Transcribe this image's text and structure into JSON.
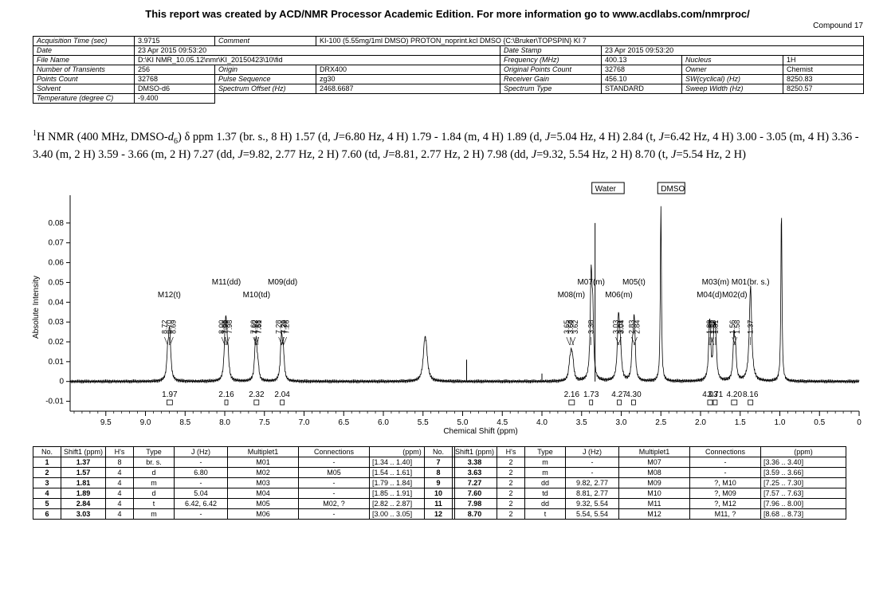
{
  "report_title": "This report was created by ACD/NMR Processor Academic Edition. For more information go to www.acdlabs.com/nmrproc/",
  "compound": "Compound 17",
  "acquisition": {
    "rows": [
      [
        {
          "t": "Acquisition Time (sec)",
          "l": true
        },
        {
          "t": "3.9715"
        },
        {
          "t": "Comment",
          "l": true
        },
        {
          "t": "KI-100 (5.55mg/1ml DMSO) PROTON_noprint.kcl DMSO {C:\\Bruker\\TOPSPIN} KI 7",
          "span": 5
        }
      ],
      [
        {
          "t": "Date",
          "l": true
        },
        {
          "t": "23 Apr 2015 09:53:20",
          "span": 3
        },
        {
          "t": "Date Stamp",
          "l": true
        },
        {
          "t": "23 Apr 2015 09:53:20",
          "span": 3
        }
      ],
      [
        {
          "t": "File Name",
          "l": true
        },
        {
          "t": "D:\\KI NMR_10.05.12\\nmr\\KI_20150423\\10\\fid",
          "span": 3
        },
        {
          "t": "Frequency (MHz)",
          "l": true
        },
        {
          "t": "400.13"
        },
        {
          "t": "Nucleus",
          "l": true
        },
        {
          "t": "1H"
        }
      ],
      [
        {
          "t": "Number of Transients",
          "l": true
        },
        {
          "t": "256"
        },
        {
          "t": "Origin",
          "l": true
        },
        {
          "t": "DRX400"
        },
        {
          "t": "Original Points Count",
          "l": true
        },
        {
          "t": "32768"
        },
        {
          "t": "Owner",
          "l": true
        },
        {
          "t": "Chemist"
        }
      ],
      [
        {
          "t": "Points Count",
          "l": true
        },
        {
          "t": "32768"
        },
        {
          "t": "Pulse Sequence",
          "l": true
        },
        {
          "t": "zg30"
        },
        {
          "t": "Receiver Gain",
          "l": true
        },
        {
          "t": "456.10"
        },
        {
          "t": "SW(cyclical) (Hz)",
          "l": true
        },
        {
          "t": "8250.83"
        }
      ],
      [
        {
          "t": "Solvent",
          "l": true
        },
        {
          "t": "DMSO-d6"
        },
        {
          "t": "Spectrum Offset (Hz)",
          "l": true
        },
        {
          "t": "2468.6687"
        },
        {
          "t": "Spectrum Type",
          "l": true
        },
        {
          "t": "STANDARD"
        },
        {
          "t": "Sweep Width (Hz)",
          "l": true
        },
        {
          "t": "8250.57"
        }
      ],
      [
        {
          "t": "Temperature (degree C)",
          "l": true
        },
        {
          "t": "-9.400"
        }
      ]
    ]
  },
  "nmr_text": {
    "nucleus_mass": "1",
    "start": "H NMR (400 MHz, DMSO-",
    "d_letter": "d",
    "d_sub": "6",
    "after_solvent": ") δ ppm 1.37 (br. s., 8 H) 1.57 (d, ",
    "segments": [
      {
        "j": "J",
        "t": "=6.80 Hz, 4 H) 1.79 - 1.84 (m, 4 H) 1.89 (d, "
      },
      {
        "j": "J",
        "t": "=5.04 Hz, 4 H) 2.84 (t, "
      },
      {
        "j": "J",
        "t": "=6.42 Hz, 4 H) 3.00 - 3.05 (m, 4 H) 3.36 - 3.40 (m, 2 H) 3.59 - 3.66 (m, 2 H) 7.27 (dd, "
      },
      {
        "j": "J",
        "t": "=9.82, 2.77 Hz, 2 H) 7.60 (td, "
      },
      {
        "j": "J",
        "t": "=8.81, 2.77 Hz, 2 H) 7.98 (dd, "
      },
      {
        "j": "J",
        "t": "=9.32, 5.54 Hz, 2 H) 8.70 (t, "
      },
      {
        "j": "J",
        "t": "=5.54 Hz, 2 H)"
      }
    ]
  },
  "chart_data": {
    "type": "line",
    "xlabel": "Chemical Shift (ppm)",
    "ylabel": "Absolute Intensity",
    "xlim": [
      9.95,
      0.0
    ],
    "ylim": [
      -0.015,
      0.09
    ],
    "x_reversed": true,
    "xticks": [
      9.5,
      9.0,
      8.5,
      8.0,
      7.5,
      7.0,
      6.5,
      6.0,
      5.5,
      5.0,
      4.5,
      4.0,
      3.5,
      3.0,
      2.5,
      2.0,
      1.5,
      1.0,
      0.5,
      0
    ],
    "xtick_labels": [
      "9.5",
      "9.0",
      "8.5",
      "8.0",
      "7.5",
      "7.0",
      "6.5",
      "6.0",
      "5.5",
      "5.0",
      "4.5",
      "4.0",
      "3.5",
      "3.0",
      "2.5",
      "2.0",
      "1.5",
      "1.0",
      "0.5",
      "0"
    ],
    "yticks": [
      -0.01,
      0,
      0.01,
      0.02,
      0.03,
      0.04,
      0.05,
      0.06,
      0.07,
      0.08
    ],
    "ytick_labels": [
      "-0.01",
      "0",
      "0.01",
      "0.02",
      "0.03",
      "0.04",
      "0.05",
      "0.06",
      "0.07",
      "0.08"
    ],
    "peaks": [
      {
        "ppm": 8.72,
        "h": 0.012,
        "w": 0.014
      },
      {
        "ppm": 8.7,
        "h": 0.016,
        "w": 0.014
      },
      {
        "ppm": 8.69,
        "h": 0.012,
        "w": 0.014
      },
      {
        "ppm": 8.0,
        "h": 0.01,
        "w": 0.013
      },
      {
        "ppm": 7.99,
        "h": 0.014,
        "w": 0.013
      },
      {
        "ppm": 7.98,
        "h": 0.016,
        "w": 0.013
      },
      {
        "ppm": 7.96,
        "h": 0.012,
        "w": 0.013
      },
      {
        "ppm": 7.62,
        "h": 0.006,
        "w": 0.013
      },
      {
        "ppm": 7.61,
        "h": 0.01,
        "w": 0.013
      },
      {
        "ppm": 7.6,
        "h": 0.011,
        "w": 0.013
      },
      {
        "ppm": 7.58,
        "h": 0.006,
        "w": 0.013
      },
      {
        "ppm": 7.29,
        "h": 0.012,
        "w": 0.013
      },
      {
        "ppm": 7.28,
        "h": 0.013,
        "w": 0.013
      },
      {
        "ppm": 7.26,
        "h": 0.012,
        "w": 0.013
      },
      {
        "ppm": 5.48,
        "h": 0.015,
        "w": 0.022
      },
      {
        "ppm": 5.46,
        "h": 0.012,
        "w": 0.022
      },
      {
        "ppm": 3.65,
        "h": 0.007,
        "w": 0.015
      },
      {
        "ppm": 3.63,
        "h": 0.011,
        "w": 0.015
      },
      {
        "ppm": 3.61,
        "h": 0.008,
        "w": 0.015
      },
      {
        "ppm": 3.38,
        "h": 0.05,
        "w": 0.013
      },
      {
        "ppm": 3.36,
        "h": 0.03,
        "w": 0.013
      },
      {
        "ppm": 3.04,
        "h": 0.015,
        "w": 0.015
      },
      {
        "ppm": 3.03,
        "h": 0.019,
        "w": 0.015
      },
      {
        "ppm": 3.01,
        "h": 0.013,
        "w": 0.015
      },
      {
        "ppm": 2.86,
        "h": 0.014,
        "w": 0.012
      },
      {
        "ppm": 2.84,
        "h": 0.021,
        "w": 0.012
      },
      {
        "ppm": 2.83,
        "h": 0.014,
        "w": 0.012
      },
      {
        "ppm": 2.5,
        "h": 0.088,
        "w": 0.008
      },
      {
        "ppm": 1.89,
        "h": 0.016,
        "w": 0.013
      },
      {
        "ppm": 1.88,
        "h": 0.018,
        "w": 0.013
      },
      {
        "ppm": 1.83,
        "h": 0.021,
        "w": 0.013
      },
      {
        "ppm": 1.81,
        "h": 0.022,
        "w": 0.013
      },
      {
        "ppm": 1.58,
        "h": 0.02,
        "w": 0.013
      },
      {
        "ppm": 1.56,
        "h": 0.015,
        "w": 0.013
      },
      {
        "ppm": 1.37,
        "h": 0.048,
        "w": 0.018
      },
      {
        "ppm": 0.98,
        "h": 0.086,
        "w": 0.008
      }
    ],
    "spikes": [
      {
        "ppm": 4.95,
        "h": 0.011
      },
      {
        "ppm": 4.0,
        "h": 0.004
      },
      {
        "ppm": 3.33,
        "h": 0.08
      }
    ],
    "peak_labels": [
      {
        "ppm": 8.72,
        "text": "8.72"
      },
      {
        "ppm": 8.7,
        "text": "8.70"
      },
      {
        "ppm": 8.69,
        "text": "8.69"
      },
      {
        "ppm": 8.0,
        "text": "8.00"
      },
      {
        "ppm": 7.99,
        "text": "7.99"
      },
      {
        "ppm": 7.98,
        "text": "7.98"
      },
      {
        "ppm": 7.96,
        "text": "7.96"
      },
      {
        "ppm": 7.62,
        "text": "7.62"
      },
      {
        "ppm": 7.61,
        "text": "7.61"
      },
      {
        "ppm": 7.6,
        "text": "7.60"
      },
      {
        "ppm": 7.58,
        "text": "7.58"
      },
      {
        "ppm": 7.29,
        "text": "7.29"
      },
      {
        "ppm": 7.28,
        "text": "7.28"
      },
      {
        "ppm": 7.26,
        "text": "7.26"
      },
      {
        "ppm": 7.26,
        "text": "7.26"
      },
      {
        "ppm": 3.65,
        "text": "3.65"
      },
      {
        "ppm": 3.64,
        "text": "3.64"
      },
      {
        "ppm": 3.62,
        "text": "3.62"
      },
      {
        "ppm": 3.6,
        "text": "3.60"
      },
      {
        "ppm": 3.38,
        "text": "3.38"
      },
      {
        "ppm": 3.04,
        "text": "3.04"
      },
      {
        "ppm": 3.03,
        "text": "3.03"
      },
      {
        "ppm": 3.01,
        "text": "3.01"
      },
      {
        "ppm": 2.84,
        "text": "2.84"
      },
      {
        "ppm": 2.83,
        "text": "2.83"
      },
      {
        "ppm": 1.89,
        "text": "1.89"
      },
      {
        "ppm": 1.88,
        "text": "1.88"
      },
      {
        "ppm": 1.83,
        "text": "1.83"
      },
      {
        "ppm": 1.81,
        "text": "1.81"
      },
      {
        "ppm": 1.58,
        "text": "1.58"
      },
      {
        "ppm": 1.56,
        "text": "1.56"
      },
      {
        "ppm": 1.37,
        "text": "1.37"
      }
    ],
    "multiplet_labels": [
      {
        "ppm": 8.7,
        "text": "M12(t)"
      },
      {
        "ppm": 7.98,
        "text": "M11(dd)"
      },
      {
        "ppm": 7.6,
        "text": "M10(td)"
      },
      {
        "ppm": 7.27,
        "text": "M09(dd)"
      },
      {
        "ppm": 3.63,
        "text": "M08(m)"
      },
      {
        "ppm": 3.38,
        "text": "M07(m)"
      },
      {
        "ppm": 3.03,
        "text": "M06(m)"
      },
      {
        "ppm": 2.84,
        "text": "M05(t)"
      },
      {
        "ppm": 1.89,
        "text": "M04(d)"
      },
      {
        "ppm": 1.81,
        "text": "M03(m)"
      },
      {
        "ppm": 1.57,
        "text": "M02(d)"
      },
      {
        "ppm": 1.37,
        "text": "M01(br. s.)"
      }
    ],
    "solvent_labels": [
      {
        "ppm": 3.33,
        "text": "Water"
      },
      {
        "ppm": 2.5,
        "text": "DMSO"
      }
    ],
    "integrals": [
      {
        "from": 8.73,
        "to": 8.66,
        "text": "1.97"
      },
      {
        "from": 8.0,
        "to": 7.96,
        "text": "2.16"
      },
      {
        "from": 7.63,
        "to": 7.57,
        "text": "2.32"
      },
      {
        "from": 7.3,
        "to": 7.25,
        "text": "2.04"
      },
      {
        "from": 3.66,
        "to": 3.59,
        "text": "2.16"
      },
      {
        "from": 3.4,
        "to": 3.36,
        "text": "1.73"
      },
      {
        "from": 3.05,
        "to": 3.0,
        "text": "4.27"
      },
      {
        "from": 2.87,
        "to": 2.82,
        "text": "4.30"
      },
      {
        "from": 1.91,
        "to": 1.85,
        "text": "4.03"
      },
      {
        "from": 1.84,
        "to": 1.79,
        "text": "3.71"
      },
      {
        "from": 1.61,
        "to": 1.54,
        "text": "4.20"
      },
      {
        "from": 1.4,
        "to": 1.34,
        "text": "8.16"
      }
    ]
  },
  "peak_table": {
    "headers": [
      "No.",
      "Shift1 (ppm)",
      "H's",
      "Type",
      "J (Hz)",
      "Multiplet1",
      "Connections",
      "(ppm)"
    ],
    "left": [
      [
        "1",
        "1.37",
        "8",
        "br. s.",
        "-",
        "M01",
        "-",
        "[1.34 .. 1.40]"
      ],
      [
        "2",
        "1.57",
        "4",
        "d",
        "6.80",
        "M02",
        "M05",
        "[1.54 .. 1.61]"
      ],
      [
        "3",
        "1.81",
        "4",
        "m",
        "-",
        "M03",
        "-",
        "[1.79 .. 1.84]"
      ],
      [
        "4",
        "1.89",
        "4",
        "d",
        "5.04",
        "M04",
        "-",
        "[1.85 .. 1.91]"
      ],
      [
        "5",
        "2.84",
        "4",
        "t",
        "6.42, 6.42",
        "M05",
        "M02, ?",
        "[2.82 .. 2.87]"
      ],
      [
        "6",
        "3.03",
        "4",
        "m",
        "-",
        "M06",
        "-",
        "[3.00 .. 3.05]"
      ]
    ],
    "right": [
      [
        "7",
        "3.38",
        "2",
        "m",
        "-",
        "M07",
        "-",
        "[3.36 .. 3.40]"
      ],
      [
        "8",
        "3.63",
        "2",
        "m",
        "-",
        "M08",
        "-",
        "[3.59 .. 3.66]"
      ],
      [
        "9",
        "7.27",
        "2",
        "dd",
        "9.82, 2.77",
        "M09",
        "?, M10",
        "[7.25 .. 7.30]"
      ],
      [
        "10",
        "7.60",
        "2",
        "td",
        "8.81, 2.77",
        "M10",
        "?, M09",
        "[7.57 .. 7.63]"
      ],
      [
        "11",
        "7.98",
        "2",
        "dd",
        "9.32, 5.54",
        "M11",
        "?, M12",
        "[7.96 .. 8.00]"
      ],
      [
        "12",
        "8.70",
        "2",
        "t",
        "5.54, 5.54",
        "M12",
        "M11, ?",
        "[8.68 .. 8.73]"
      ]
    ]
  }
}
